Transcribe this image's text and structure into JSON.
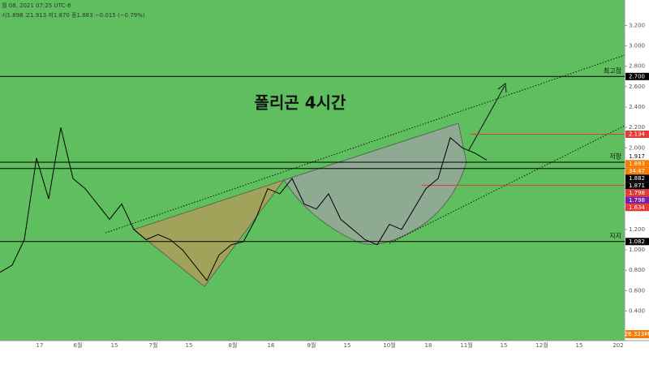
{
  "chart_data": {
    "type": "line",
    "header": "월 08, 2021 07:25 UTC-8",
    "ohlc": "시1.898  고1.913  저1.870  종1.883  −0.015 (−0.79%)",
    "title": "폴리곤 4시간",
    "x_labels": [
      "17",
      "6월",
      "15",
      "7월",
      "15",
      "8월",
      "16",
      "9월",
      "15",
      "10월",
      "18",
      "11월",
      "15",
      "12월",
      "15",
      "202"
    ],
    "series": [
      {
        "color": "#000000",
        "values": [
          0.78,
          0.85,
          1.1,
          1.9,
          1.5,
          2.2,
          1.7,
          1.6,
          1.45,
          1.3,
          1.45,
          1.2,
          1.1,
          1.15,
          1.1,
          1.0,
          0.85,
          0.7,
          0.95,
          1.05,
          1.08,
          1.3,
          1.6,
          1.55,
          1.7,
          1.45,
          1.4,
          1.55,
          1.3,
          1.2,
          1.1,
          1.05,
          1.25,
          1.2,
          1.4,
          1.6,
          1.7,
          2.1,
          2.0,
          1.95,
          1.88
        ]
      }
    ],
    "ylim": [
      0.11,
      3.45
    ],
    "yticks": [
      {
        "value": 0.4,
        "label": "0.400"
      },
      {
        "value": 0.6,
        "label": "0.600"
      },
      {
        "value": 0.8,
        "label": "0.800"
      },
      {
        "value": 1.0,
        "label": "1.000"
      },
      {
        "value": 1.2,
        "label": "1.200"
      },
      {
        "value": 1.4,
        "label": "1.400"
      },
      {
        "value": 1.6,
        "label": "1.600"
      },
      {
        "value": 1.8,
        "label": "1.800"
      },
      {
        "value": 2.0,
        "label": "2.000"
      },
      {
        "value": 2.2,
        "label": "2.200"
      },
      {
        "value": 2.4,
        "label": "2.400"
      },
      {
        "value": 2.6,
        "label": "2.600"
      },
      {
        "value": 2.8,
        "label": "2.800"
      },
      {
        "value": 3.0,
        "label": "3.000"
      },
      {
        "value": 3.2,
        "label": "3.200"
      }
    ],
    "levels": [
      {
        "value": 2.7,
        "color": "#000000",
        "label": "최고점"
      },
      {
        "value": 2.134,
        "color": "#e53935"
      },
      {
        "value": 1.86,
        "color": "#000000",
        "label": "저항"
      },
      {
        "value": 1.798,
        "color": "#000000"
      },
      {
        "value": 1.634,
        "color": "#e53935"
      },
      {
        "value": 1.082,
        "color": "#000000",
        "label": "지지"
      }
    ],
    "price_tags": [
      {
        "value": 2.7,
        "label": "2.700",
        "color": "#000000"
      },
      {
        "value": 2.134,
        "color": "#e53935"
      },
      {
        "value": 1.917,
        "color": "#ffffff"
      },
      {
        "value": 1.883,
        "color": "#f57c00"
      },
      {
        "label": "34:47",
        "color": "#f57c00"
      },
      {
        "value": 1.882,
        "color": "#000000"
      },
      {
        "value": 1.871,
        "color": "#000000"
      },
      {
        "value": 1.798,
        "color": "#e53935"
      },
      {
        "value": 1.798,
        "color": "#7b1fa2"
      },
      {
        "value": 1.634,
        "color": "#e53935"
      },
      {
        "value": 1.082,
        "color": "#000000"
      }
    ],
    "volume_tag": "26.323M"
  }
}
